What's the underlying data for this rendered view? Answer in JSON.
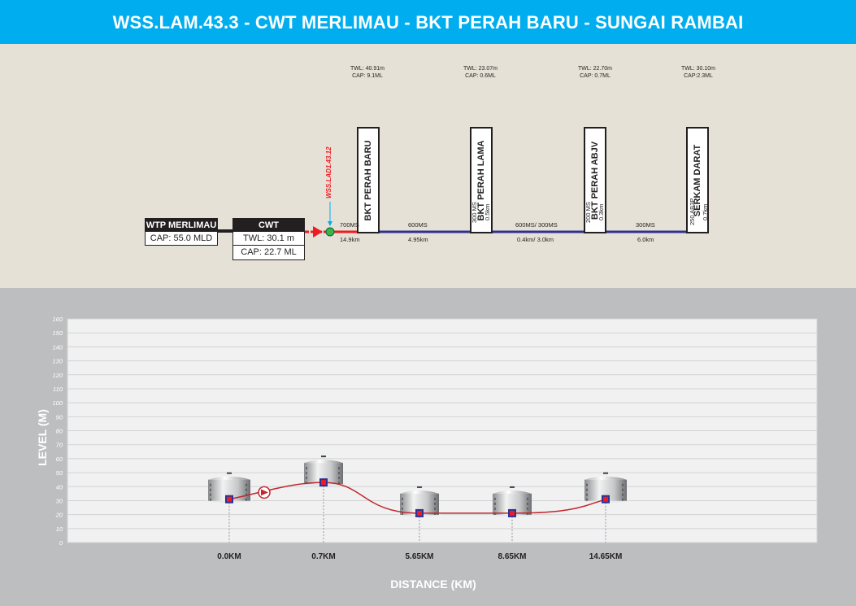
{
  "header": {
    "title": "WSS.LAM.43.3 - CWT MERLIMAU - BKT PERAH BARU - SUNGAI RAMBAI"
  },
  "schematic": {
    "wtp": {
      "name": "WTP MERLIMAU",
      "cap": "CAP: 55.0 MLD"
    },
    "cwt": {
      "name": "CWT MERLIMAU",
      "twl": "TWL: 30.1 m",
      "cap": "CAP: 22.7 ML"
    },
    "valve_label": "WSS.LAD1.43.12",
    "tanks": [
      {
        "name": "BKT PERAH BARU",
        "twl": "TWL: 40.91m",
        "cap": "CAP: 9.1ML"
      },
      {
        "name": "BKT PERAH LAMA",
        "twl": "TWL: 23.07m",
        "cap": "CAP: 0.6ML"
      },
      {
        "name": "BKT PERAH ABJV",
        "twl": "TWL: 22.70m",
        "cap": "CAP: 0.7ML"
      },
      {
        "name": "SERKAM DARAT",
        "twl": "TWL: 30.10m",
        "cap": "CAP:2.3ML"
      }
    ],
    "pipes": {
      "red_size": "700MS",
      "red_len": "14.9km",
      "seg1_size": "600MS",
      "seg1_len": "4.95km",
      "seg2_size": "600MS/ 300MS",
      "seg2_len": "0.4km/ 3.0km",
      "seg3_size": "300MS",
      "seg3_len": "6.0km"
    },
    "branches": [
      {
        "size": "300 MS",
        "len": "0.5km"
      },
      {
        "size": "200 MS",
        "len": "0.3km"
      },
      {
        "size": "250 AB3P",
        "len": "0.7km"
      }
    ]
  },
  "chart_data": {
    "type": "line",
    "title": "",
    "xlabel": "DISTANCE (KM)",
    "ylabel": "LEVEL (M)",
    "ylim": [
      0,
      160
    ],
    "yticks": [
      0,
      10,
      20,
      30,
      40,
      50,
      60,
      70,
      80,
      90,
      100,
      110,
      120,
      130,
      140,
      150,
      160
    ],
    "categories": [
      "0.0KM",
      "0.7KM",
      "5.65KM",
      "8.65KM",
      "14.65KM"
    ],
    "values": [
      31,
      43,
      21,
      21,
      31
    ],
    "pump_after_index": 0
  }
}
